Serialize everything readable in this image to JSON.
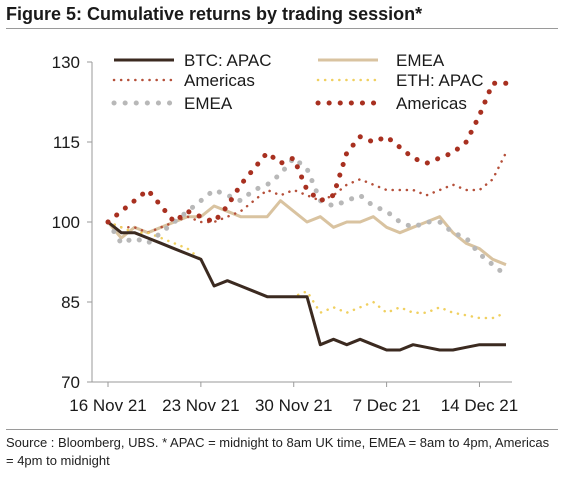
{
  "title": "Figure 5: Cumulative returns by trading session*",
  "source": "Source : Bloomberg, UBS. * APAC = midnight to 8am UK time, EMEA = 8am to 4pm, Americas = 4pm to midnight",
  "chart_data": {
    "type": "line",
    "ylim": [
      70,
      130
    ],
    "yticks": [
      70,
      85,
      100,
      115,
      130
    ],
    "x_ticks": [
      "16 Nov 21",
      "23 Nov 21",
      "30 Nov 21",
      "7 Dec 21",
      "14 Dec 21"
    ],
    "x_range_days": [
      0,
      30
    ],
    "grid": false,
    "legend_position": "top",
    "series": [
      {
        "name": "BTC: APAC",
        "color": "#3b2a20",
        "style": "solid",
        "width": 3,
        "x": [
          0,
          1,
          2,
          3,
          4,
          5,
          6,
          7,
          8,
          9,
          10,
          11,
          12,
          13,
          14,
          15,
          16,
          17,
          18,
          19,
          20,
          21,
          22,
          23,
          24,
          25,
          26,
          27,
          28,
          29,
          30
        ],
        "values": [
          100,
          98,
          98,
          97,
          96,
          95,
          94,
          93,
          88,
          89,
          88,
          87,
          86,
          86,
          86,
          86,
          77,
          78,
          77,
          78,
          77,
          76,
          76,
          77,
          76.5,
          76,
          76,
          76.5,
          77,
          77,
          77
        ]
      },
      {
        "name": "EMEA",
        "color": "#d9c3a0",
        "style": "solid",
        "width": 3,
        "x": [
          0,
          1,
          2,
          3,
          4,
          5,
          6,
          7,
          8,
          9,
          10,
          11,
          12,
          13,
          14,
          15,
          16,
          17,
          18,
          19,
          20,
          21,
          22,
          23,
          24,
          25,
          26,
          27,
          28,
          29,
          30
        ],
        "values": [
          100,
          97,
          99,
          98,
          99,
          100,
          101,
          101,
          103,
          102,
          101,
          101,
          101,
          104,
          102,
          100,
          101,
          99,
          100,
          100,
          101,
          99,
          98,
          99,
          100,
          101,
          98,
          96,
          95,
          93,
          92
        ]
      },
      {
        "name": "Americas",
        "color": "#b5503a",
        "style": "dotted-small",
        "width": 2.5,
        "x": [
          0,
          1,
          2,
          3,
          4,
          5,
          6,
          7,
          8,
          9,
          10,
          11,
          12,
          13,
          14,
          15,
          16,
          17,
          18,
          19,
          20,
          21,
          22,
          23,
          24,
          25,
          26,
          27,
          28,
          29,
          30
        ],
        "values": [
          100,
          99,
          99,
          98,
          99,
          100,
          101,
          100,
          100,
          101,
          102,
          104,
          106,
          105,
          106,
          105,
          104,
          105,
          107,
          108,
          107,
          106,
          106,
          106,
          105,
          106,
          107,
          106,
          106,
          108,
          113
        ]
      },
      {
        "name": "ETH: APAC",
        "color": "#f0d060",
        "style": "dotted-small",
        "width": 2.5,
        "x": [
          0,
          1,
          2,
          3,
          4,
          5,
          6,
          7,
          8,
          9,
          10,
          11,
          12,
          13,
          14,
          15,
          16,
          17,
          18,
          19,
          20,
          21,
          22,
          23,
          24,
          25,
          26,
          27,
          28,
          29,
          30
        ],
        "values": [
          100,
          99,
          98,
          98,
          97,
          96,
          95,
          93,
          88,
          89,
          88,
          87,
          86,
          86,
          86,
          87,
          83,
          84,
          83,
          84,
          85,
          83,
          84,
          83,
          83,
          84,
          83,
          82.5,
          82,
          82,
          83
        ]
      },
      {
        "name": "EMEA",
        "color": "#b8b8b8",
        "style": "dotted-large",
        "width": 5,
        "x": [
          0,
          1,
          2,
          3,
          4,
          5,
          6,
          7,
          8,
          9,
          10,
          11,
          12,
          13,
          14,
          15,
          16,
          17,
          18,
          19,
          20,
          21,
          22,
          23,
          24,
          25,
          26,
          27,
          28,
          29,
          30
        ],
        "values": [
          100,
          96,
          97,
          96,
          98,
          100,
          102,
          104,
          106,
          105,
          104,
          106,
          107,
          109,
          112,
          110,
          104,
          103,
          104,
          105,
          103,
          102,
          100,
          99,
          100,
          100,
          98,
          97,
          94,
          92,
          90
        ]
      },
      {
        "name": "Americas",
        "color": "#a83020",
        "style": "dotted-large",
        "width": 5,
        "x": [
          0,
          1,
          2,
          3,
          4,
          5,
          6,
          7,
          8,
          9,
          10,
          11,
          12,
          13,
          14,
          15,
          16,
          17,
          18,
          19,
          20,
          21,
          22,
          23,
          24,
          25,
          26,
          27,
          28,
          29,
          30
        ],
        "values": [
          100,
          102,
          104,
          106,
          103,
          100,
          102,
          101,
          100,
          103,
          107,
          110,
          113,
          111,
          112,
          106,
          104,
          105,
          113,
          116,
          115,
          116,
          114,
          112,
          111,
          112,
          113,
          115,
          120,
          126,
          126
        ]
      }
    ]
  }
}
